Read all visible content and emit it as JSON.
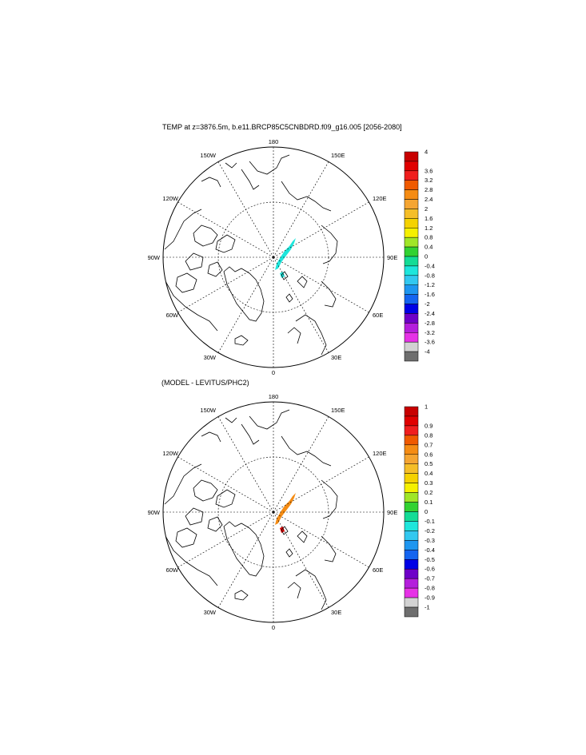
{
  "panels": [
    {
      "title": "TEMP at z=3876.5m, b.e11.BRCP85C5CNBDRD.f09_g16.005 [2056-2080]",
      "lon_labels": {
        "top": "180",
        "bottom": "0",
        "left": "90W",
        "right": "90E",
        "upper_left": "120W",
        "upper_left2": "150W",
        "upper_right": "120E",
        "upper_right2": "150E",
        "lower_left": "60W",
        "lower_left2": "30W",
        "lower_right": "60E",
        "lower_right2": "30E"
      },
      "colorbar": {
        "labels": [
          "4",
          "3.6",
          "3.2",
          "2.8",
          "2.4",
          "2",
          "1.6",
          "1.2",
          "0.8",
          "0.4",
          "0",
          "-0.4",
          "-0.8",
          "-1.2",
          "-1.6",
          "-2",
          "-2.4",
          "-2.8",
          "-3.2",
          "-3.6",
          "-4"
        ],
        "colors": [
          "#c80000",
          "#e00000",
          "#f01e1e",
          "#f05a00",
          "#f58c14",
          "#f5a532",
          "#f5be28",
          "#f5d200",
          "#f5f000",
          "#a0e628",
          "#32d232",
          "#14dc96",
          "#1ee6dc",
          "#32c8f0",
          "#1e96f0",
          "#1464f0",
          "#0000e6",
          "#6e00c8",
          "#b41edc",
          "#e632e6",
          "#d2d2d2",
          "#6e6e6e"
        ]
      },
      "field_color": "#1ee6dc"
    },
    {
      "title": "(MODEL - LEVITUS/PHC2)",
      "lon_labels": {
        "top": "180",
        "bottom": "0",
        "left": "90W",
        "right": "90E",
        "upper_left": "120W",
        "upper_left2": "150W",
        "upper_right": "120E",
        "upper_right2": "150E",
        "lower_left": "60W",
        "lower_left2": "30W",
        "lower_right": "60E",
        "lower_right2": "30E"
      },
      "colorbar": {
        "labels": [
          "1",
          "0.9",
          "0.8",
          "0.7",
          "0.6",
          "0.5",
          "0.4",
          "0.3",
          "0.2",
          "0.1",
          "0",
          "-0.1",
          "-0.2",
          "-0.3",
          "-0.4",
          "-0.5",
          "-0.6",
          "-0.7",
          "-0.8",
          "-0.9",
          "-1"
        ],
        "colors": [
          "#c80000",
          "#e00000",
          "#f01e1e",
          "#f05a00",
          "#f58c14",
          "#f5a532",
          "#f5be28",
          "#f5d200",
          "#f5f000",
          "#a0e628",
          "#32d232",
          "#14dc96",
          "#1ee6dc",
          "#32c8f0",
          "#1e96f0",
          "#1464f0",
          "#0000e6",
          "#6e00c8",
          "#b41edc",
          "#e632e6",
          "#d2d2d2",
          "#6e6e6e"
        ]
      },
      "field_color": "#f58c14",
      "hotspot_color": "#e00000"
    }
  ]
}
